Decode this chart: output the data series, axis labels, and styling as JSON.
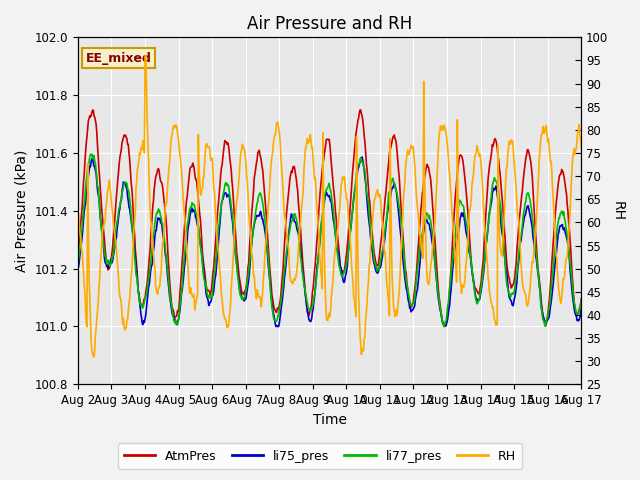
{
  "title": "Air Pressure and RH",
  "xlabel": "Time",
  "ylabel_left": "Air Pressure (kPa)",
  "ylabel_right": "RH",
  "annotation": "EE_mixed",
  "ylim_left": [
    100.8,
    102.0
  ],
  "ylim_right": [
    25,
    100
  ],
  "yticks_left": [
    100.8,
    101.0,
    101.2,
    101.4,
    101.6,
    101.8,
    102.0
  ],
  "yticks_right": [
    25,
    30,
    35,
    40,
    45,
    50,
    55,
    60,
    65,
    70,
    75,
    80,
    85,
    90,
    95,
    100
  ],
  "xticklabels": [
    "Aug 2",
    "Aug 3",
    "Aug 4",
    "Aug 5",
    "Aug 6",
    "Aug 7",
    "Aug 8",
    "Aug 9",
    "Aug 10",
    "Aug 11",
    "Aug 12",
    "Aug 13",
    "Aug 14",
    "Aug 15",
    "Aug 16",
    "Aug 17"
  ],
  "colors": {
    "AtmPres": "#cc0000",
    "li75_pres": "#0000cc",
    "li77_pres": "#00bb00",
    "RH": "#ffaa00"
  },
  "legend_labels": [
    "AtmPres",
    "li75_pres",
    "li77_pres",
    "RH"
  ],
  "plot_bg": "#e8e8e8",
  "fig_bg": "#f2f2f2",
  "title_fontsize": 12,
  "axis_fontsize": 10,
  "tick_fontsize": 8.5,
  "linewidth": 1.2
}
